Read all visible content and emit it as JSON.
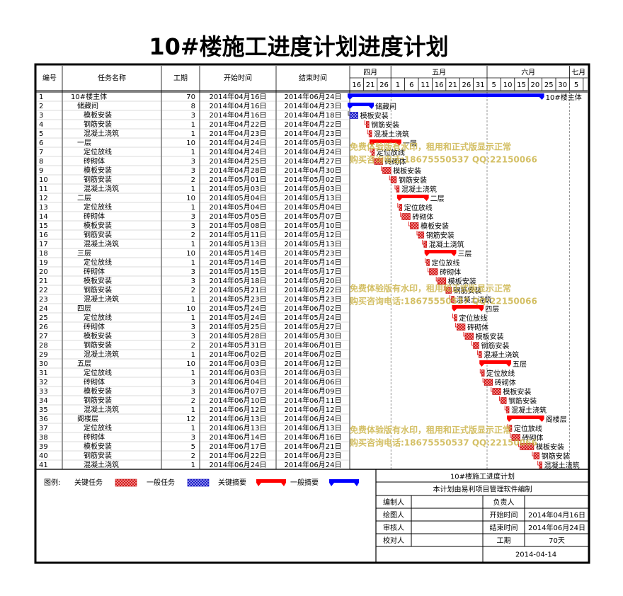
{
  "title": "10#楼施工进度计划进度计划",
  "table": {
    "headers": [
      "编号",
      "任务名称",
      "工期",
      "开始时间",
      "结束时间"
    ],
    "rows": [
      {
        "id": 1,
        "name": "10#楼主体",
        "duration": 70,
        "start": "2014年04月16日",
        "end": "2014年06月24日",
        "level": 0,
        "critical": false,
        "summary": true
      },
      {
        "id": 2,
        "name": "储藏间",
        "duration": 8,
        "start": "2014年04月16日",
        "end": "2014年04月23日",
        "level": 1,
        "critical": false,
        "summary": true
      },
      {
        "id": 3,
        "name": "模板安装",
        "duration": 3,
        "start": "2014年04月16日",
        "end": "2014年04月18日",
        "level": 2,
        "critical": false,
        "summary": false
      },
      {
        "id": 4,
        "name": "钢筋安装",
        "duration": 1,
        "start": "2014年04月22日",
        "end": "2014年04月22日",
        "level": 2,
        "critical": true,
        "summary": false
      },
      {
        "id": 5,
        "name": "混凝土浇筑",
        "duration": 1,
        "start": "2014年04月23日",
        "end": "2014年04月23日",
        "level": 2,
        "critical": true,
        "summary": false
      },
      {
        "id": 6,
        "name": "一层",
        "duration": 10,
        "start": "2014年04月24日",
        "end": "2014年05月03日",
        "level": 1,
        "critical": true,
        "summary": true
      },
      {
        "id": 7,
        "name": "定位放线",
        "duration": 1,
        "start": "2014年04月24日",
        "end": "2014年04月24日",
        "level": 2,
        "critical": true,
        "summary": false
      },
      {
        "id": 8,
        "name": "砖砌体",
        "duration": 3,
        "start": "2014年04月25日",
        "end": "2014年04月27日",
        "level": 2,
        "critical": true,
        "summary": false
      },
      {
        "id": 9,
        "name": "模板安装",
        "duration": 3,
        "start": "2014年04月28日",
        "end": "2014年04月30日",
        "level": 2,
        "critical": true,
        "summary": false
      },
      {
        "id": 10,
        "name": "钢筋安装",
        "duration": 2,
        "start": "2014年05月01日",
        "end": "2014年05月02日",
        "level": 2,
        "critical": true,
        "summary": false
      },
      {
        "id": 11,
        "name": "混凝土浇筑",
        "duration": 1,
        "start": "2014年05月03日",
        "end": "2014年05月03日",
        "level": 2,
        "critical": true,
        "summary": false
      },
      {
        "id": 12,
        "name": "二层",
        "duration": 10,
        "start": "2014年05月04日",
        "end": "2014年05月13日",
        "level": 1,
        "critical": true,
        "summary": true
      },
      {
        "id": 13,
        "name": "定位放线",
        "duration": 1,
        "start": "2014年05月04日",
        "end": "2014年05月04日",
        "level": 2,
        "critical": true,
        "summary": false
      },
      {
        "id": 14,
        "name": "砖砌体",
        "duration": 3,
        "start": "2014年05月05日",
        "end": "2014年05月07日",
        "level": 2,
        "critical": true,
        "summary": false
      },
      {
        "id": 15,
        "name": "模板安装",
        "duration": 3,
        "start": "2014年05月08日",
        "end": "2014年05月10日",
        "level": 2,
        "critical": true,
        "summary": false
      },
      {
        "id": 16,
        "name": "钢筋安装",
        "duration": 2,
        "start": "2014年05月11日",
        "end": "2014年05月12日",
        "level": 2,
        "critical": true,
        "summary": false
      },
      {
        "id": 17,
        "name": "混凝土浇筑",
        "duration": 1,
        "start": "2014年05月13日",
        "end": "2014年05月13日",
        "level": 2,
        "critical": true,
        "summary": false
      },
      {
        "id": 18,
        "name": "三层",
        "duration": 10,
        "start": "2014年05月14日",
        "end": "2014年05月23日",
        "level": 1,
        "critical": true,
        "summary": true
      },
      {
        "id": 19,
        "name": "定位放线",
        "duration": 1,
        "start": "2014年05月14日",
        "end": "2014年05月14日",
        "level": 2,
        "critical": true,
        "summary": false
      },
      {
        "id": 20,
        "name": "砖砌体",
        "duration": 3,
        "start": "2014年05月15日",
        "end": "2014年05月17日",
        "level": 2,
        "critical": true,
        "summary": false
      },
      {
        "id": 21,
        "name": "模板安装",
        "duration": 3,
        "start": "2014年05月18日",
        "end": "2014年05月20日",
        "level": 2,
        "critical": true,
        "summary": false
      },
      {
        "id": 22,
        "name": "钢筋安装",
        "duration": 2,
        "start": "2014年05月21日",
        "end": "2014年05月22日",
        "level": 2,
        "critical": true,
        "summary": false
      },
      {
        "id": 23,
        "name": "混凝土浇筑",
        "duration": 1,
        "start": "2014年05月23日",
        "end": "2014年05月23日",
        "level": 2,
        "critical": true,
        "summary": false
      },
      {
        "id": 24,
        "name": "四层",
        "duration": 10,
        "start": "2014年05月24日",
        "end": "2014年06月02日",
        "level": 1,
        "critical": true,
        "summary": true
      },
      {
        "id": 25,
        "name": "定位放线",
        "duration": 1,
        "start": "2014年05月24日",
        "end": "2014年05月24日",
        "level": 2,
        "critical": true,
        "summary": false
      },
      {
        "id": 26,
        "name": "砖砌体",
        "duration": 3,
        "start": "2014年05月25日",
        "end": "2014年05月27日",
        "level": 2,
        "critical": true,
        "summary": false
      },
      {
        "id": 27,
        "name": "模板安装",
        "duration": 3,
        "start": "2014年05月28日",
        "end": "2014年05月30日",
        "level": 2,
        "critical": true,
        "summary": false
      },
      {
        "id": 28,
        "name": "钢筋安装",
        "duration": 2,
        "start": "2014年05月31日",
        "end": "2014年06月01日",
        "level": 2,
        "critical": true,
        "summary": false
      },
      {
        "id": 29,
        "name": "混凝土浇筑",
        "duration": 1,
        "start": "2014年06月02日",
        "end": "2014年06月02日",
        "level": 2,
        "critical": true,
        "summary": false
      },
      {
        "id": 30,
        "name": "五层",
        "duration": 10,
        "start": "2014年06月03日",
        "end": "2014年06月12日",
        "level": 1,
        "critical": true,
        "summary": true
      },
      {
        "id": 31,
        "name": "定位放线",
        "duration": 1,
        "start": "2014年06月03日",
        "end": "2014年06月03日",
        "level": 2,
        "critical": true,
        "summary": false
      },
      {
        "id": 32,
        "name": "砖砌体",
        "duration": 3,
        "start": "2014年06月04日",
        "end": "2014年06月06日",
        "level": 2,
        "critical": true,
        "summary": false
      },
      {
        "id": 33,
        "name": "模板安装",
        "duration": 3,
        "start": "2014年06月07日",
        "end": "2014年06月09日",
        "level": 2,
        "critical": true,
        "summary": false
      },
      {
        "id": 34,
        "name": "钢筋安装",
        "duration": 2,
        "start": "2014年06月10日",
        "end": "2014年06月11日",
        "level": 2,
        "critical": true,
        "summary": false
      },
      {
        "id": 35,
        "name": "混凝土浇筑",
        "duration": 1,
        "start": "2014年06月12日",
        "end": "2014年06月12日",
        "level": 2,
        "critical": true,
        "summary": false
      },
      {
        "id": 36,
        "name": "阁楼层",
        "duration": 12,
        "start": "2014年06月13日",
        "end": "2014年06月24日",
        "level": 1,
        "critical": true,
        "summary": true
      },
      {
        "id": 37,
        "name": "定位放线",
        "duration": 1,
        "start": "2014年06月13日",
        "end": "2014年06月13日",
        "level": 2,
        "critical": true,
        "summary": false
      },
      {
        "id": 38,
        "name": "砖砌体",
        "duration": 3,
        "start": "2014年06月14日",
        "end": "2014年06月16日",
        "level": 2,
        "critical": true,
        "summary": false
      },
      {
        "id": 39,
        "name": "模板安装",
        "duration": 5,
        "start": "2014年06月17日",
        "end": "2014年06月21日",
        "level": 2,
        "critical": true,
        "summary": false
      },
      {
        "id": 40,
        "name": "钢筋安装",
        "duration": 2,
        "start": "2014年06月22日",
        "end": "2014年06月23日",
        "level": 2,
        "critical": true,
        "summary": false
      },
      {
        "id": 41,
        "name": "混凝土浇筑",
        "duration": 1,
        "start": "2014年06月24日",
        "end": "2014年06月24日",
        "level": 2,
        "critical": true,
        "summary": false
      }
    ]
  },
  "timeline": {
    "months": [
      "四月",
      "五月",
      "六月",
      "七月"
    ],
    "days": [
      16,
      21,
      26,
      1,
      6,
      11,
      16,
      21,
      26,
      31,
      5,
      10,
      15,
      20,
      25,
      30,
      5
    ]
  },
  "watermark": [
    "免费体验版有水印，租用和正式版显示正常",
    "购买咨询电话:18675550537 QQ:22150066"
  ],
  "legend": {
    "label": "图例:",
    "items": [
      "关键任务",
      "一般任务",
      "关键摘要",
      "一般摘要"
    ]
  },
  "footer": {
    "title": "10#楼施工进度计划",
    "note": "本计划由易利项目管理软件编制",
    "signatures": [
      "编制人",
      "绘图人",
      "审核人",
      "校对人"
    ],
    "info": [
      {
        "label": "负责人"
      },
      {
        "label": "开始时间",
        "value": "2014年04月16日"
      },
      {
        "label": "结束时间",
        "value": "2014年06月24日"
      },
      {
        "label": "工期",
        "value": "70天"
      }
    ],
    "date": "2014-04-14"
  }
}
